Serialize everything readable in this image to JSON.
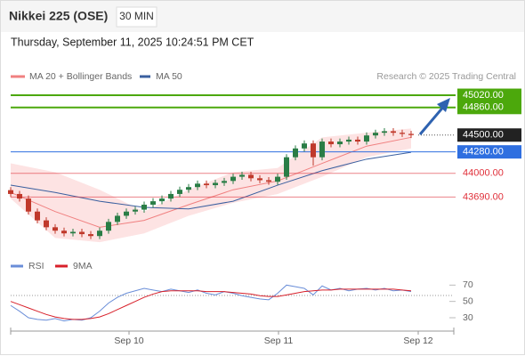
{
  "header": {
    "title": "Nikkei 225 (OSE)",
    "interval": "30 MIN",
    "timestamp": "Thursday, September 11, 2025 10:24:51 PM CET"
  },
  "chart_data": [
    {
      "type": "candlestick",
      "x": [
        0,
        1,
        2,
        3,
        4,
        5,
        6,
        7,
        8,
        9,
        10,
        11,
        12,
        13,
        14,
        15,
        16,
        17,
        18,
        19,
        20,
        21,
        22,
        23,
        24,
        25,
        26,
        27,
        28,
        29,
        30,
        31,
        32,
        33,
        34,
        35,
        36,
        37,
        38,
        39,
        40,
        41,
        42,
        43,
        44,
        45
      ],
      "open": [
        43780,
        43730,
        43670,
        43500,
        43385,
        43295,
        43250,
        43215,
        43235,
        43205,
        43180,
        43250,
        43365,
        43445,
        43500,
        43525,
        43590,
        43635,
        43670,
        43730,
        43785,
        43820,
        43865,
        43845,
        43875,
        43900,
        43955,
        43980,
        43935,
        43910,
        43890,
        43955,
        44210,
        44325,
        44390,
        44210,
        44415,
        44380,
        44415,
        44440,
        44415,
        44495,
        44530,
        44550,
        44530,
        44515
      ],
      "high": [
        43820,
        43770,
        43710,
        43540,
        43425,
        43335,
        43290,
        43275,
        43275,
        43245,
        43290,
        43405,
        43485,
        43540,
        43565,
        43630,
        43675,
        43710,
        43770,
        43825,
        43860,
        43905,
        43905,
        43915,
        43940,
        43995,
        44020,
        44020,
        43975,
        43950,
        43995,
        44250,
        44365,
        44430,
        44430,
        44455,
        44455,
        44455,
        44480,
        44480,
        44535,
        44570,
        44590,
        44590,
        44570,
        44555
      ],
      "low": [
        43690,
        43630,
        43460,
        43345,
        43255,
        43210,
        43175,
        43175,
        43165,
        43140,
        43140,
        43210,
        43325,
        43405,
        43460,
        43485,
        43550,
        43595,
        43630,
        43690,
        43745,
        43780,
        43805,
        43805,
        43835,
        43860,
        43915,
        43895,
        43870,
        43850,
        43850,
        43915,
        44170,
        44285,
        44100,
        44170,
        44340,
        44340,
        44375,
        44375,
        44375,
        44455,
        44490,
        44490,
        44475,
        44460
      ],
      "close": [
        43730,
        43670,
        43500,
        43385,
        43295,
        43250,
        43215,
        43235,
        43205,
        43180,
        43250,
        43365,
        43445,
        43500,
        43525,
        43590,
        43635,
        43670,
        43730,
        43785,
        43820,
        43865,
        43845,
        43875,
        43900,
        43955,
        43980,
        43935,
        43910,
        43890,
        43955,
        44210,
        44325,
        44390,
        44210,
        44415,
        44380,
        44415,
        44440,
        44415,
        44495,
        44530,
        44550,
        44530,
        44515,
        44500
      ],
      "colors": {
        "up": "#2a7d46",
        "down": "#c0392b"
      },
      "xlim": [
        0,
        49.8
      ],
      "ylim": [
        42950,
        45160
      ],
      "overlays": [
        {
          "name": "MA 20 + Bollinger Bands",
          "color": "#f08080",
          "band_color": "#fde3e3",
          "x": [
            0,
            5,
            10,
            15,
            20,
            25,
            30,
            35,
            40,
            45
          ],
          "values": [
            43750,
            43500,
            43295,
            43385,
            43590,
            43785,
            43900,
            44130,
            44355,
            44470
          ],
          "upper": [
            44130,
            44015,
            43785,
            43500,
            43785,
            44015,
            44070,
            44470,
            44530,
            44585
          ],
          "lower": [
            43670,
            43155,
            43100,
            43215,
            43445,
            43615,
            43730,
            43955,
            44210,
            44325
          ]
        },
        {
          "name": "MA 50",
          "color": "#3a5f9f",
          "x": [
            0,
            5,
            10,
            15,
            20,
            25,
            30,
            35,
            40,
            45
          ],
          "values": [
            43845,
            43750,
            43635,
            43555,
            43535,
            43635,
            43845,
            44035,
            44185,
            44275
          ]
        }
      ],
      "levels": [
        {
          "value": 45020,
          "label": "45020.00",
          "color": "#4ca80c",
          "style": "box"
        },
        {
          "value": 44860,
          "label": "44860.00",
          "color": "#4ca80c",
          "style": "box"
        },
        {
          "value": 44500,
          "label": "44500.00",
          "color": "#222222",
          "style": "box"
        },
        {
          "value": 44280,
          "label": "44280.00",
          "color": "#2f6fe0",
          "style": "box"
        },
        {
          "value": 44000,
          "label": "44000.00",
          "color": "#e0303a",
          "style": "text"
        },
        {
          "value": 43690,
          "label": "43690.00",
          "color": "#e0303a",
          "style": "text"
        }
      ],
      "source": "Research © 2025 Trading Central"
    },
    {
      "type": "line",
      "x": [
        0,
        1,
        2,
        3,
        4,
        5,
        6,
        7,
        8,
        9,
        10,
        11,
        12,
        13,
        14,
        15,
        16,
        17,
        18,
        19,
        20,
        21,
        22,
        23,
        24,
        25,
        26,
        27,
        28,
        29,
        30,
        31,
        32,
        33,
        34,
        35,
        36,
        37,
        38,
        39,
        40,
        41,
        42,
        43,
        44,
        45
      ],
      "series": [
        {
          "name": "RSI",
          "color": "#6a8ed8",
          "values": [
            45,
            38,
            30,
            28,
            27,
            29,
            26,
            28,
            27,
            30,
            38,
            48,
            55,
            60,
            63,
            66,
            64,
            62,
            65,
            63,
            61,
            64,
            60,
            58,
            62,
            60,
            57,
            55,
            53,
            52,
            60,
            70,
            68,
            66,
            58,
            69,
            64,
            66,
            63,
            65,
            66,
            64,
            66,
            63,
            64,
            62
          ]
        },
        {
          "name": "9MA",
          "color": "#d8202a",
          "values": [
            50,
            46,
            42,
            38,
            34,
            31,
            29,
            28,
            28,
            29,
            31,
            35,
            40,
            45,
            50,
            55,
            59,
            62,
            63,
            63,
            63,
            63,
            62,
            62,
            62,
            61,
            60,
            59,
            57,
            56,
            56,
            58,
            60,
            62,
            63,
            64,
            64,
            65,
            65,
            65,
            65,
            65,
            65,
            65,
            64,
            63
          ]
        }
      ],
      "xlim": [
        0,
        49.8
      ],
      "xticks": [
        {
          "value": 13.3,
          "label": "Sep 10"
        },
        {
          "value": 30.1,
          "label": "Sep 11"
        },
        {
          "value": 45.8,
          "label": "Sep 12"
        }
      ],
      "ylim": [
        18,
        78
      ],
      "yticks": [
        30,
        50,
        70
      ]
    }
  ]
}
